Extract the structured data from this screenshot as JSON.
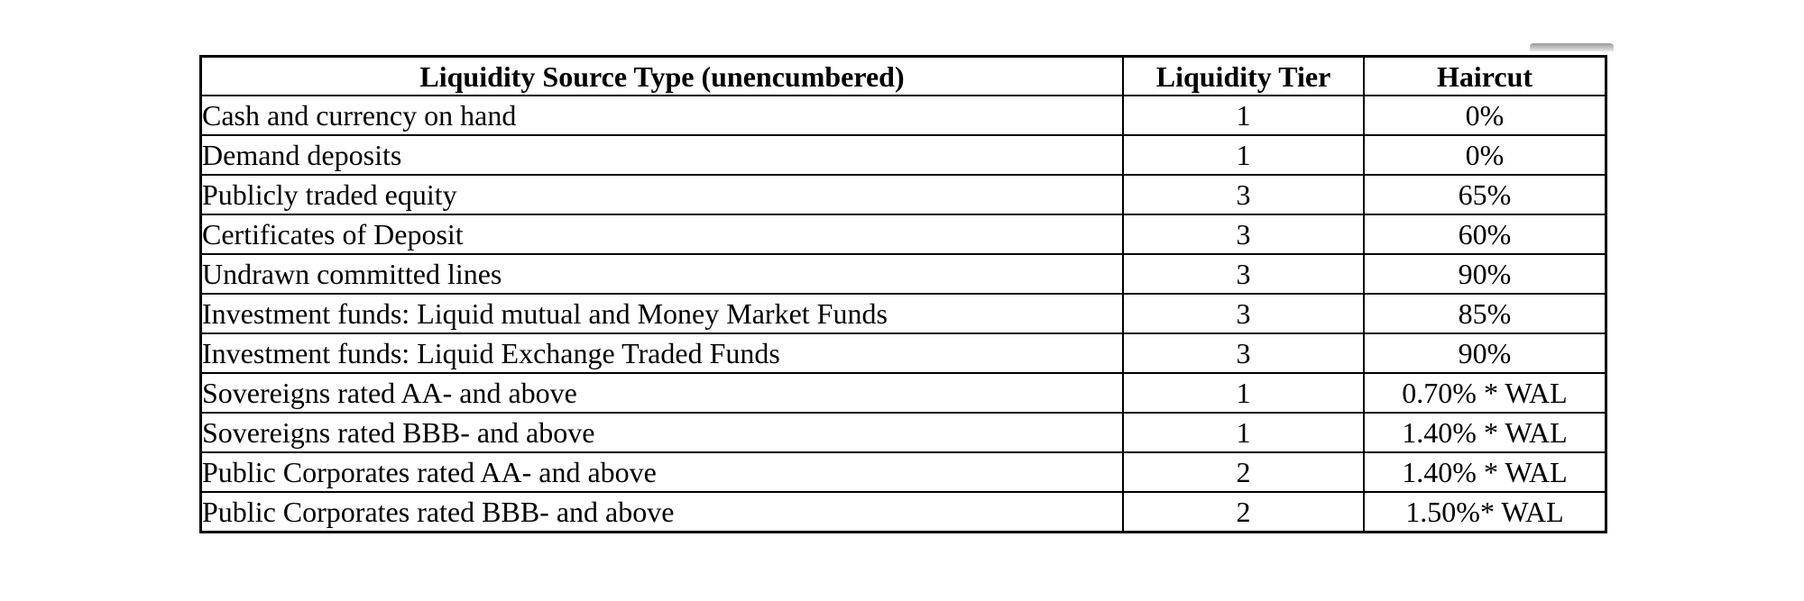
{
  "page": {
    "background_color": "#ffffff",
    "border_color": "#000000",
    "gray_bar_color": "#9a9a9a"
  },
  "table": {
    "headers": [
      "Liquidity Source Type (unencumbered)",
      "Liquidity Tier",
      "Haircut"
    ],
    "rows": [
      {
        "source": "Cash and currency on hand",
        "tier": "1",
        "haircut": "0%"
      },
      {
        "source": "Demand deposits",
        "tier": "1",
        "haircut": "0%"
      },
      {
        "source": "Publicly traded equity",
        "tier": "3",
        "haircut": "65%"
      },
      {
        "source": "Certificates of Deposit",
        "tier": "3",
        "haircut": "60%"
      },
      {
        "source": "Undrawn committed lines",
        "tier": "3",
        "haircut": "90%"
      },
      {
        "source": "Investment funds: Liquid mutual and Money Market Funds",
        "tier": "3",
        "haircut": "85%"
      },
      {
        "source": "Investment funds: Liquid Exchange Traded Funds",
        "tier": "3",
        "haircut": "90%"
      },
      {
        "source": "Sovereigns rated AA- and above",
        "tier": "1",
        "haircut": "0.70% * WAL"
      },
      {
        "source": "Sovereigns rated BBB- and above",
        "tier": "1",
        "haircut": "1.40% * WAL"
      },
      {
        "source": "Public Corporates rated AA- and above",
        "tier": "2",
        "haircut": "1.40% * WAL"
      },
      {
        "source": "Public Corporates rated BBB- and above",
        "tier": "2",
        "haircut": "1.50%* WAL"
      }
    ]
  },
  "chart_data": {
    "type": "table",
    "title": "",
    "columns": [
      "Liquidity Source Type (unencumbered)",
      "Liquidity Tier",
      "Haircut"
    ],
    "rows": [
      [
        "Cash and currency on hand",
        "1",
        "0%"
      ],
      [
        "Demand deposits",
        "1",
        "0%"
      ],
      [
        "Publicly traded equity",
        "3",
        "65%"
      ],
      [
        "Certificates of Deposit",
        "3",
        "60%"
      ],
      [
        "Undrawn committed lines",
        "3",
        "90%"
      ],
      [
        "Investment funds: Liquid mutual and Money Market Funds",
        "3",
        "85%"
      ],
      [
        "Investment funds: Liquid Exchange Traded Funds",
        "3",
        "90%"
      ],
      [
        "Sovereigns rated AA- and above",
        "1",
        "0.70% * WAL"
      ],
      [
        "Sovereigns rated BBB- and above",
        "1",
        "1.40% * WAL"
      ],
      [
        "Public Corporates rated AA- and above",
        "2",
        "1.40% * WAL"
      ],
      [
        "Public Corporates rated BBB- and above",
        "2",
        "1.50%* WAL"
      ]
    ]
  }
}
